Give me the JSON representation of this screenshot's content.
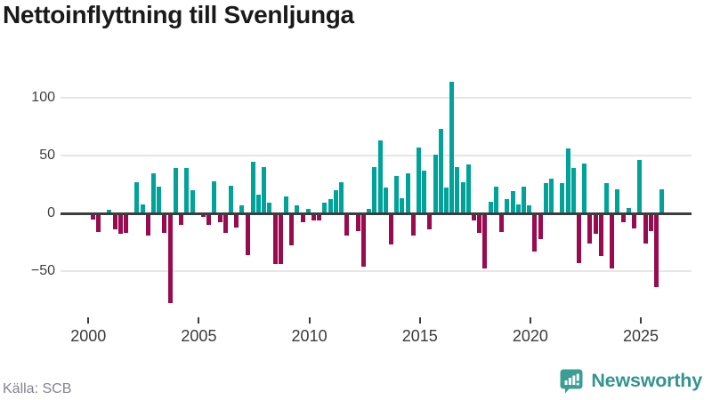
{
  "title": "Nettoinflyttning till Svenljunga",
  "source": "Källa: SCB",
  "brand": {
    "name": "Newsworthy"
  },
  "colors": {
    "positive_bar": "#00a39a",
    "negative_bar": "#990a4e",
    "zero_line": "#3d3d3d",
    "gridline": "#e6e6e6",
    "axis_text": "#3f3f3f",
    "title_text": "#1a1a1a",
    "source_text": "#83838d",
    "brand_teal": "#33958e"
  },
  "chart_data": {
    "type": "bar",
    "title": "Nettoinflyttning till Svenljunga",
    "frequency": "quarterly",
    "x_start": "2000 Q1",
    "x_end": "2025 Q4",
    "y_ticks": [
      100,
      50,
      0,
      -50
    ],
    "x_tick_labels": [
      "2000",
      "2005",
      "2010",
      "2015",
      "2020",
      "2025"
    ],
    "ylim": [
      -85,
      120
    ],
    "grid": true,
    "legend": false,
    "series": [
      {
        "name": "Nettoinflyttning",
        "values": [
          -5,
          -16,
          0,
          3,
          -14,
          -18,
          -17,
          0,
          27,
          8,
          -19,
          35,
          23,
          -17,
          -78,
          39,
          -10,
          39,
          20,
          0,
          -3,
          -10,
          28,
          -8,
          -17,
          24,
          -12,
          7,
          -36,
          45,
          16,
          40,
          9,
          -44,
          -44,
          15,
          -28,
          7,
          -8,
          4,
          -6,
          -6,
          9,
          12,
          20,
          27,
          -19,
          0,
          -15,
          -46,
          4,
          40,
          63,
          22,
          -27,
          32,
          13,
          35,
          -19,
          57,
          37,
          -14,
          51,
          73,
          22,
          114,
          40,
          27,
          42,
          -6,
          -17,
          -48,
          10,
          23,
          -16,
          12,
          19,
          8,
          23,
          7,
          -33,
          -22,
          26,
          30,
          0,
          26,
          56,
          39,
          -43,
          43,
          -26,
          -18,
          -37,
          26,
          -48,
          21,
          -8,
          5,
          -13,
          46,
          -26,
          -15,
          -64,
          21
        ]
      }
    ]
  }
}
